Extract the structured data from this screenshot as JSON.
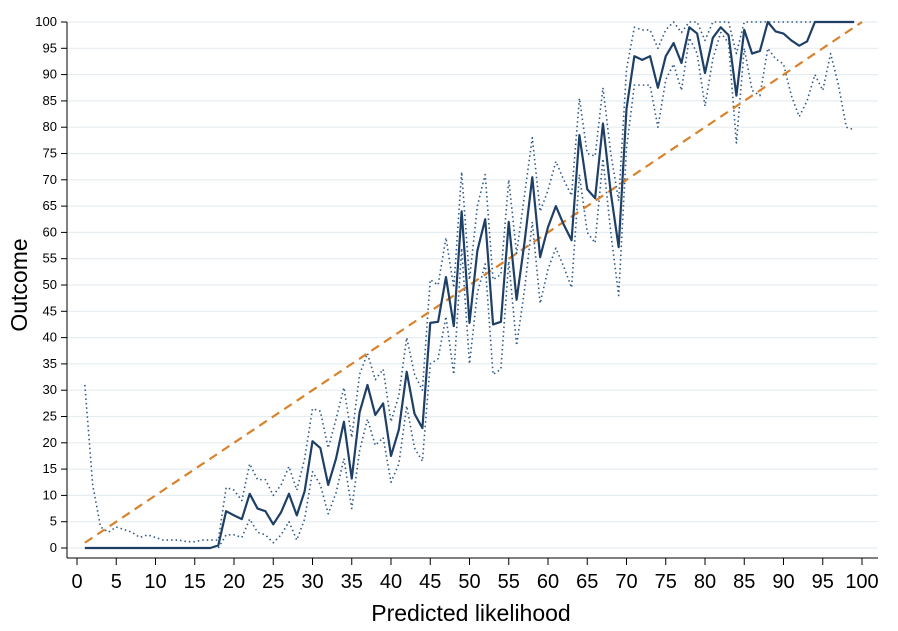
{
  "chart_data": {
    "type": "line",
    "title": "",
    "xlabel": "Predicted likelihood",
    "ylabel": "Outcome",
    "xlim": [
      0,
      100
    ],
    "ylim": [
      0,
      100
    ],
    "x_ticks": [
      "0",
      "5",
      "10",
      "15",
      "20",
      "25",
      "30",
      "35",
      "40",
      "45",
      "50",
      "55",
      "60",
      "65",
      "70",
      "75",
      "80",
      "85",
      "90",
      "95",
      "100"
    ],
    "y_ticks": [
      "0",
      "5",
      "10",
      "15",
      "20",
      "25",
      "30",
      "35",
      "40",
      "45",
      "50",
      "55",
      "60",
      "65",
      "70",
      "75",
      "80",
      "85",
      "90",
      "95",
      "100"
    ],
    "grid": "horizontal",
    "series": [
      {
        "style": "solid",
        "color": "#1e3f66",
        "points": [
          [
            1,
            0
          ],
          [
            2,
            0
          ],
          [
            3,
            0
          ],
          [
            4,
            0
          ],
          [
            5,
            0
          ],
          [
            6,
            0
          ],
          [
            7,
            0
          ],
          [
            8,
            0
          ],
          [
            9,
            0
          ],
          [
            10,
            0
          ],
          [
            11,
            0
          ],
          [
            12,
            0
          ],
          [
            13,
            0
          ],
          [
            14,
            0
          ],
          [
            15,
            0
          ],
          [
            16,
            0
          ],
          [
            17,
            0
          ],
          [
            18,
            0.5
          ],
          [
            19,
            7
          ],
          [
            20,
            6.2
          ],
          [
            21,
            5.5
          ],
          [
            22,
            10.3
          ],
          [
            23,
            7.5
          ],
          [
            24,
            7
          ],
          [
            25,
            4.5
          ],
          [
            26,
            6.8
          ],
          [
            27,
            10.3
          ],
          [
            28,
            6.2
          ],
          [
            29,
            10.8
          ],
          [
            30,
            20.3
          ],
          [
            31,
            19
          ],
          [
            32,
            12
          ],
          [
            33,
            17
          ],
          [
            34,
            24
          ],
          [
            35,
            13.2
          ],
          [
            36,
            25.8
          ],
          [
            37,
            31
          ],
          [
            38,
            25.3
          ],
          [
            39,
            27.5
          ],
          [
            40,
            17.5
          ],
          [
            41,
            22.5
          ],
          [
            42,
            33.5
          ],
          [
            43,
            25.5
          ],
          [
            44,
            22.8
          ],
          [
            45,
            42.8
          ],
          [
            46,
            43
          ],
          [
            47,
            51.5
          ],
          [
            48,
            42.2
          ],
          [
            49,
            64
          ],
          [
            50,
            42.8
          ],
          [
            51,
            56.5
          ],
          [
            52,
            62.5
          ],
          [
            53,
            42.5
          ],
          [
            54,
            43
          ],
          [
            55,
            62
          ],
          [
            56,
            47.2
          ],
          [
            57,
            58
          ],
          [
            58,
            70.5
          ],
          [
            59,
            55.3
          ],
          [
            60,
            61
          ],
          [
            61,
            65
          ],
          [
            62,
            61.5
          ],
          [
            63,
            58.5
          ],
          [
            64,
            78.5
          ],
          [
            65,
            68.2
          ],
          [
            66,
            66.5
          ],
          [
            67,
            80.7
          ],
          [
            68,
            67.5
          ],
          [
            69,
            57.2
          ],
          [
            70,
            83.5
          ],
          [
            71,
            93.5
          ],
          [
            72,
            92.8
          ],
          [
            73,
            93.5
          ],
          [
            74,
            87.5
          ],
          [
            75,
            93.5
          ],
          [
            76,
            96
          ],
          [
            77,
            92.2
          ],
          [
            78,
            99
          ],
          [
            79,
            97.8
          ],
          [
            80,
            90.3
          ],
          [
            81,
            97
          ],
          [
            82,
            99
          ],
          [
            83,
            97.5
          ],
          [
            84,
            86
          ],
          [
            85,
            98.5
          ],
          [
            86,
            94
          ],
          [
            87,
            94.5
          ],
          [
            88,
            100
          ],
          [
            89,
            98.2
          ],
          [
            90,
            97.8
          ],
          [
            91,
            96.5
          ],
          [
            92,
            95.5
          ],
          [
            93,
            96.3
          ],
          [
            94,
            100
          ],
          [
            95,
            100
          ],
          [
            96,
            100
          ],
          [
            97,
            100
          ],
          [
            98,
            100
          ],
          [
            99,
            100
          ]
        ]
      },
      {
        "style": "dotted",
        "color": "#2f5a87",
        "points": [
          [
            1,
            31
          ],
          [
            2,
            12
          ],
          [
            3,
            4
          ],
          [
            4,
            3
          ],
          [
            5,
            4
          ],
          [
            6,
            3.5
          ],
          [
            7,
            3
          ],
          [
            8,
            2
          ],
          [
            9,
            2.5
          ],
          [
            10,
            2
          ],
          [
            11,
            1.5
          ],
          [
            12,
            1.5
          ],
          [
            13,
            1.5
          ],
          [
            14,
            1.2
          ],
          [
            15,
            1.2
          ],
          [
            16,
            1.5
          ],
          [
            17,
            1.5
          ],
          [
            18,
            1.5
          ],
          [
            19,
            11.5
          ],
          [
            20,
            11
          ],
          [
            21,
            9
          ],
          [
            22,
            16
          ],
          [
            23,
            13
          ],
          [
            24,
            13
          ],
          [
            25,
            10
          ],
          [
            26,
            12
          ],
          [
            27,
            15.5
          ],
          [
            28,
            11
          ],
          [
            29,
            17
          ],
          [
            30,
            26.5
          ],
          [
            31,
            26
          ],
          [
            32,
            19
          ],
          [
            33,
            24.5
          ],
          [
            34,
            30.5
          ],
          [
            35,
            21
          ],
          [
            36,
            33
          ],
          [
            37,
            37
          ],
          [
            38,
            32
          ],
          [
            39,
            34
          ],
          [
            40,
            24
          ],
          [
            41,
            29
          ],
          [
            42,
            40
          ],
          [
            43,
            33
          ],
          [
            44,
            30
          ],
          [
            45,
            51
          ],
          [
            46,
            50
          ],
          [
            47,
            59
          ],
          [
            48,
            49.5
          ],
          [
            49,
            71.5
          ],
          [
            50,
            51
          ],
          [
            51,
            65
          ],
          [
            52,
            71
          ],
          [
            53,
            51
          ],
          [
            54,
            52
          ],
          [
            55,
            70
          ],
          [
            56,
            56
          ],
          [
            57,
            67
          ],
          [
            58,
            78
          ],
          [
            59,
            64
          ],
          [
            60,
            68
          ],
          [
            61,
            73.5
          ],
          [
            62,
            70
          ],
          [
            63,
            67
          ],
          [
            64,
            85.5
          ],
          [
            65,
            75
          ],
          [
            66,
            74.5
          ],
          [
            67,
            87.5
          ],
          [
            68,
            75
          ],
          [
            69,
            66
          ],
          [
            70,
            91
          ],
          [
            71,
            99
          ],
          [
            72,
            98.5
          ],
          [
            73,
            98.5
          ],
          [
            74,
            95
          ],
          [
            75,
            98.5
          ],
          [
            76,
            100
          ],
          [
            77,
            98
          ],
          [
            78,
            100
          ],
          [
            79,
            100
          ],
          [
            80,
            96.5
          ],
          [
            81,
            100
          ],
          [
            82,
            100
          ],
          [
            83,
            100
          ],
          [
            84,
            94
          ],
          [
            85,
            100
          ],
          [
            86,
            100
          ],
          [
            87,
            100
          ],
          [
            88,
            100
          ],
          [
            89,
            100
          ],
          [
            90,
            100
          ],
          [
            91,
            100
          ],
          [
            92,
            100
          ],
          [
            93,
            100
          ],
          [
            94,
            100
          ],
          [
            95,
            100
          ],
          [
            96,
            100
          ],
          [
            97,
            100
          ],
          [
            98,
            100
          ],
          [
            99,
            100
          ]
        ]
      },
      {
        "style": "dotted",
        "color": "#2f5a87",
        "points": [
          [
            18,
            0
          ],
          [
            19,
            2.5
          ],
          [
            20,
            2.5
          ],
          [
            21,
            2
          ],
          [
            22,
            5.5
          ],
          [
            23,
            3
          ],
          [
            24,
            2.5
          ],
          [
            25,
            1
          ],
          [
            26,
            2.5
          ],
          [
            27,
            5
          ],
          [
            28,
            1.5
          ],
          [
            29,
            5.5
          ],
          [
            30,
            14.5
          ],
          [
            31,
            12
          ],
          [
            32,
            6.5
          ],
          [
            33,
            10.5
          ],
          [
            34,
            17
          ],
          [
            35,
            7.5
          ],
          [
            36,
            18.5
          ],
          [
            37,
            24.5
          ],
          [
            38,
            19.5
          ],
          [
            39,
            21
          ],
          [
            40,
            12.5
          ],
          [
            41,
            16
          ],
          [
            42,
            27
          ],
          [
            43,
            19
          ],
          [
            44,
            16.5
          ],
          [
            45,
            35
          ],
          [
            46,
            36
          ],
          [
            47,
            44
          ],
          [
            48,
            33
          ],
          [
            49,
            57
          ],
          [
            50,
            35
          ],
          [
            51,
            48.5
          ],
          [
            52,
            54
          ],
          [
            53,
            33
          ],
          [
            54,
            34
          ],
          [
            55,
            54.5
          ],
          [
            56,
            38.5
          ],
          [
            57,
            49
          ],
          [
            58,
            62
          ],
          [
            59,
            46.5
          ],
          [
            60,
            53
          ],
          [
            61,
            57
          ],
          [
            62,
            53.5
          ],
          [
            63,
            49.5
          ],
          [
            64,
            71
          ],
          [
            65,
            60
          ],
          [
            66,
            58
          ],
          [
            67,
            74
          ],
          [
            68,
            60
          ],
          [
            69,
            48
          ],
          [
            70,
            76
          ],
          [
            71,
            88
          ],
          [
            72,
            88
          ],
          [
            73,
            88
          ],
          [
            74,
            80
          ],
          [
            75,
            89
          ],
          [
            76,
            92
          ],
          [
            77,
            87
          ],
          [
            78,
            97
          ],
          [
            79,
            94
          ],
          [
            80,
            84
          ],
          [
            81,
            93
          ],
          [
            82,
            98
          ],
          [
            83,
            96
          ],
          [
            84,
            77
          ],
          [
            85,
            95
          ],
          [
            86,
            87
          ],
          [
            87,
            86
          ],
          [
            88,
            95
          ],
          [
            89,
            93
          ],
          [
            90,
            92
          ],
          [
            91,
            86
          ],
          [
            92,
            82
          ],
          [
            93,
            85
          ],
          [
            94,
            90
          ],
          [
            95,
            87
          ],
          [
            96,
            94
          ],
          [
            97,
            88
          ],
          [
            98,
            80
          ],
          [
            99,
            79.5
          ]
        ]
      },
      {
        "style": "dashed",
        "color": "#d9822b",
        "points": [
          [
            1,
            1
          ],
          [
            100,
            100
          ]
        ]
      }
    ]
  }
}
